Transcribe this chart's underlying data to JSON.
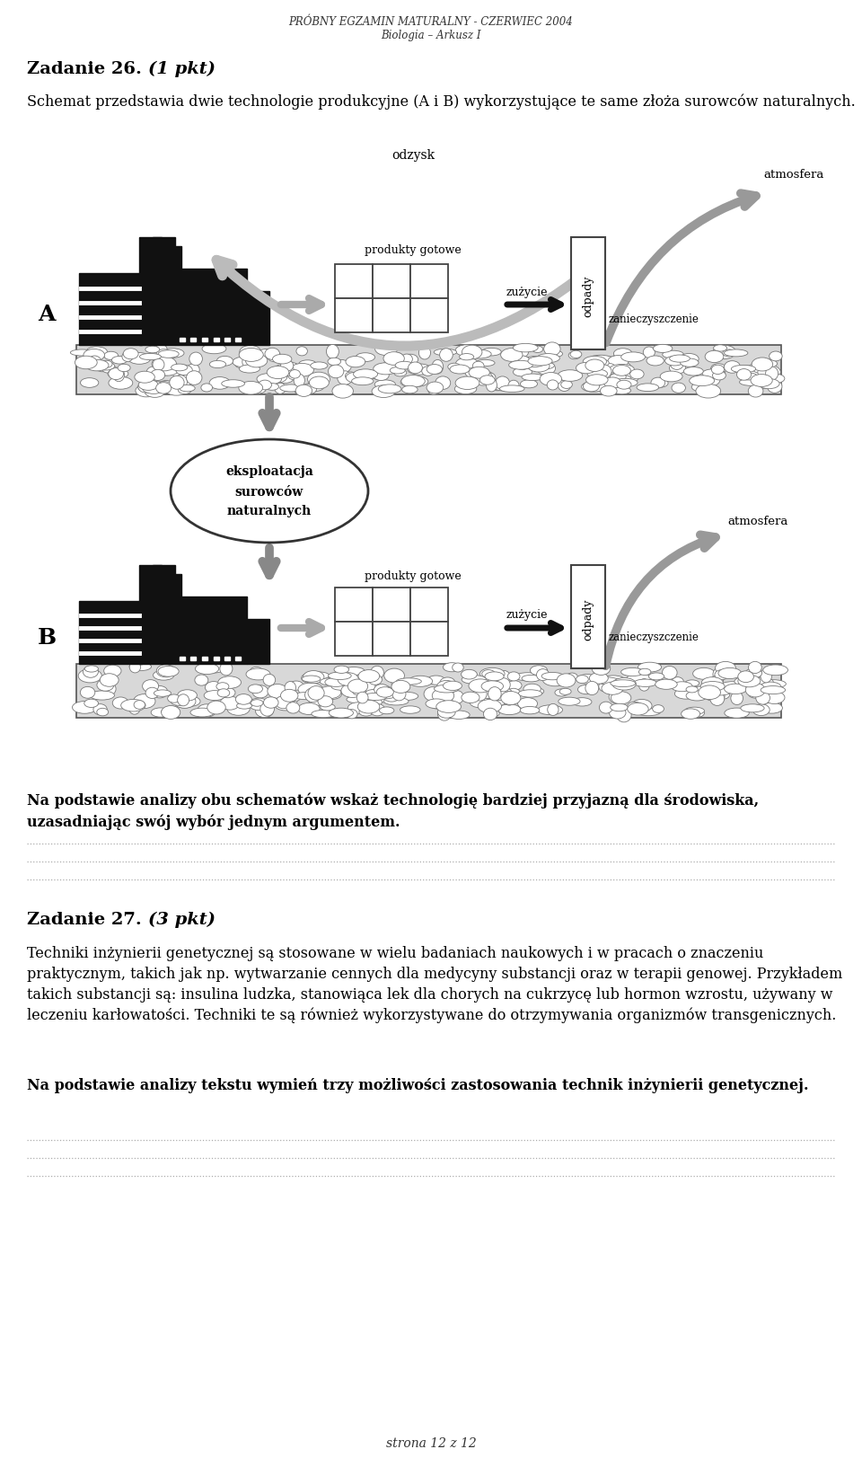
{
  "header_line1": "PRÓBNY EGZAMIN MATURALNY - CZERWIEC 2004",
  "header_line2": "Biologia – Arkusz I",
  "zadanie26_title_normal": "Zadanie 26. ",
  "zadanie26_title_italic": "(1 pkt)",
  "zadanie26_text": "Schemat przedstawia dwie technologie produkcyjne (A i B) wykorzystujące te same złoża surowców naturalnych.",
  "zadanie26_q_bold": "Na podstawie analizy obu schematów wskaż technologię bardziej przyjazną dla środowiska, uzasadniając swój wybór jednym argumentem.",
  "zadanie27_title_normal": "Zadanie 27. ",
  "zadanie27_title_italic": "(3 pkt)",
  "zadanie27_text": "Techniki inżynierii genetycznej są stosowane w wielu badaniach naukowych i w pracach o znaczeniu praktycznym, takich jak np. wytwarzanie cennych dla medycyny substancji oraz w terapii genowej. Przykładem takich substancji są: insulina ludzka, stanowiąca lek dla chorych na cukrzycę lub hormon wzrostu, używany w leczeniu karłowatości. Techniki te są również wykorzystywane do otrzymywania organizmów transgenicznych.",
  "zadanie27_bold": "Na podstawie analizy tekstu wymień trzy możliwości zastosowania technik inżynierii genetycznej.",
  "footer": "strona 12 z 12",
  "bg_color": "#ffffff",
  "text_color": "#000000"
}
